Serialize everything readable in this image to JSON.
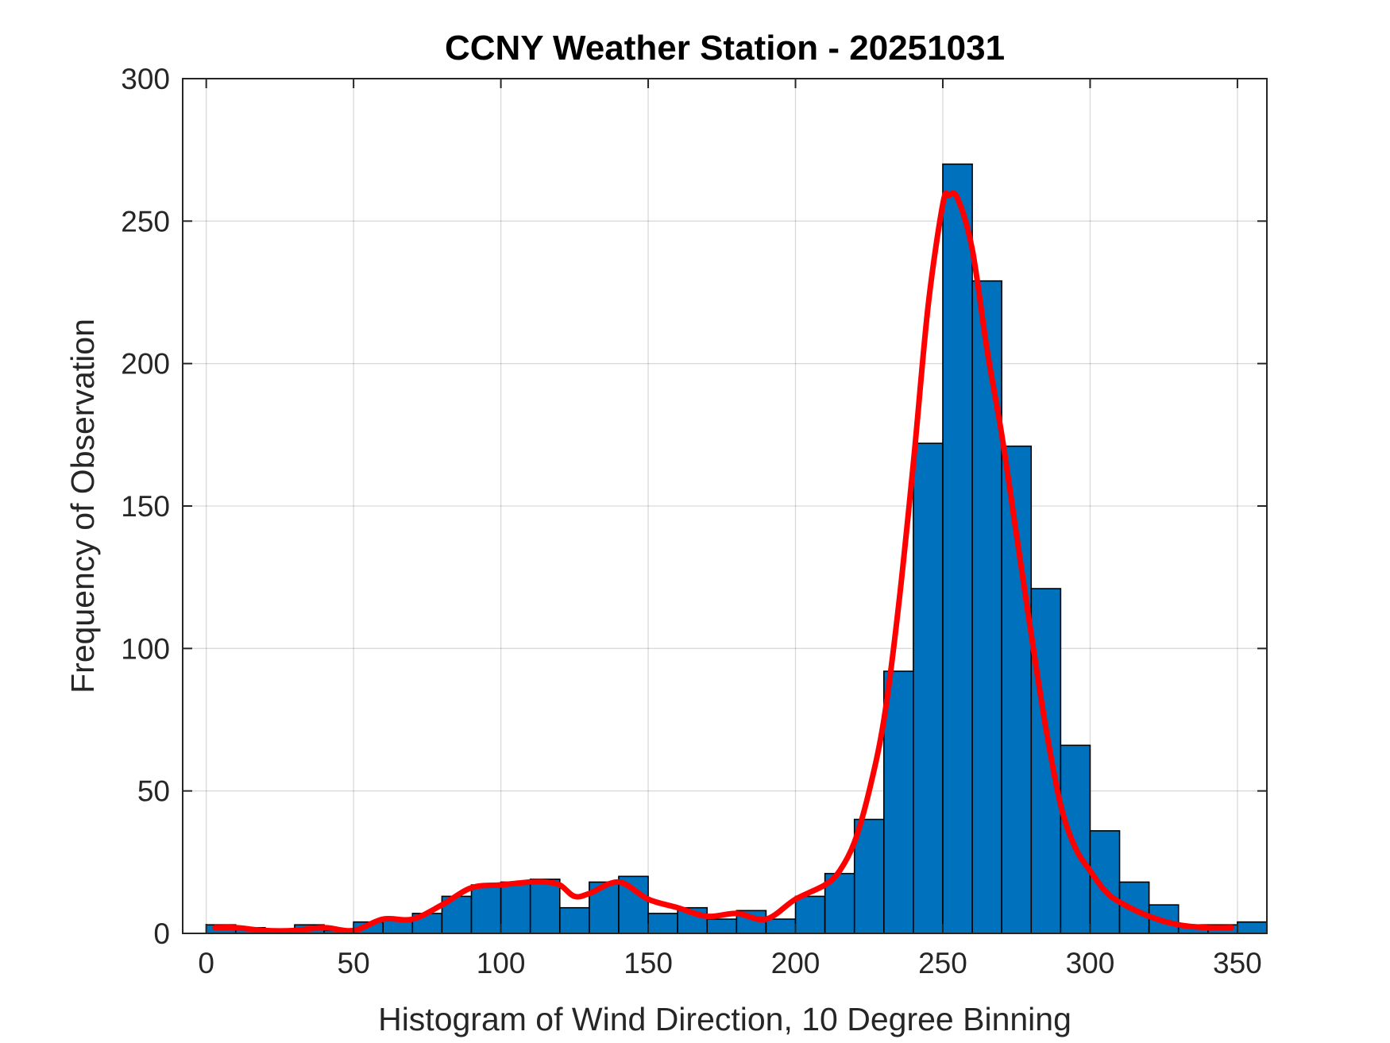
{
  "chart_data": {
    "type": "bar",
    "title": "CCNY Weather Station - 20251031",
    "xlabel": "Histogram of Wind Direction, 10 Degree Binning",
    "ylabel": "Frequency of Observation",
    "bin_edges": [
      0,
      10,
      20,
      30,
      40,
      50,
      60,
      70,
      80,
      90,
      100,
      110,
      120,
      130,
      140,
      150,
      160,
      170,
      180,
      190,
      200,
      210,
      220,
      230,
      240,
      250,
      260,
      270,
      280,
      290,
      300,
      310,
      320,
      330,
      340,
      350
    ],
    "values": [
      3,
      2,
      1,
      3,
      1,
      4,
      5,
      7,
      13,
      17,
      18,
      19,
      9,
      18,
      20,
      7,
      9,
      5,
      8,
      5,
      13,
      21,
      40,
      92,
      172,
      270,
      229,
      171,
      121,
      66,
      36,
      18,
      10,
      3,
      3,
      4
    ],
    "fit_curve": {
      "x": [
        3,
        10,
        20,
        30,
        40,
        50,
        60,
        70,
        80,
        90,
        100,
        110,
        115,
        120,
        125,
        130,
        140,
        150,
        160,
        170,
        180,
        190,
        200,
        210,
        215,
        220,
        225,
        230,
        235,
        240,
        245,
        250,
        252,
        255,
        260,
        265,
        270,
        275,
        280,
        285,
        290,
        295,
        300,
        305,
        310,
        320,
        330,
        340,
        348
      ],
      "y": [
        2,
        2,
        1,
        1,
        2,
        1,
        5,
        5,
        10,
        16,
        17,
        18,
        18,
        17,
        13,
        14,
        18,
        12,
        9,
        6,
        7,
        5,
        12,
        17,
        22,
        32,
        50,
        75,
        115,
        165,
        220,
        256,
        259,
        258,
        240,
        205,
        175,
        140,
        105,
        72,
        45,
        30,
        22,
        15,
        11,
        6,
        3,
        2,
        2
      ],
      "color": "#ff0000"
    },
    "xlim": [
      -8,
      360
    ],
    "ylim": [
      0,
      300
    ],
    "xticks": [
      "0",
      "50",
      "100",
      "150",
      "200",
      "250",
      "300",
      "350"
    ],
    "yticks": [
      "0",
      "50",
      "100",
      "150",
      "200",
      "250",
      "300"
    ],
    "bar_color": "#0072bd",
    "grid": true,
    "legend": "none"
  }
}
